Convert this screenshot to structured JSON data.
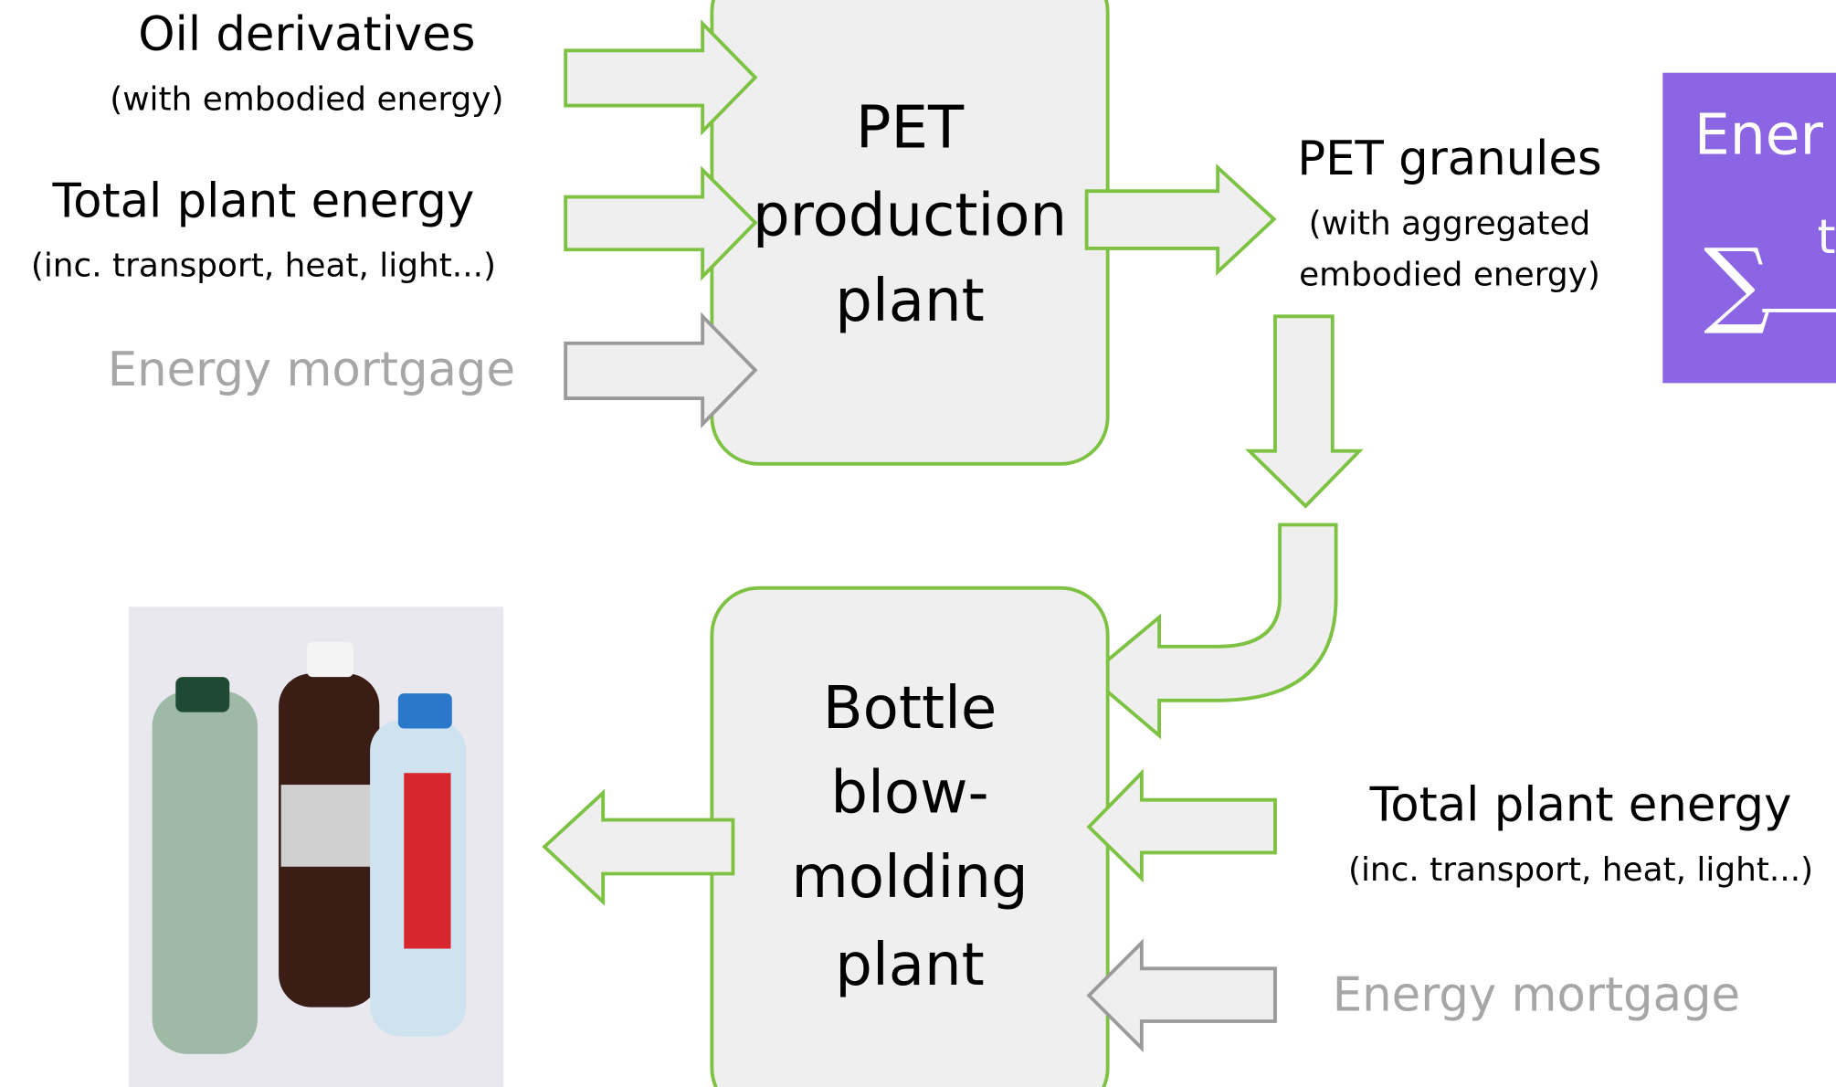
{
  "inputs_top": [
    {
      "label": "Oil derivatives",
      "note": "(with embodied energy)"
    },
    {
      "label": "Total plant energy",
      "note": "(inc. transport, heat, light...)"
    },
    {
      "label": "Energy mortgage"
    }
  ],
  "plant_top": {
    "lines": [
      "PET",
      "production",
      "plant"
    ]
  },
  "output_top": {
    "label": "PET granules",
    "note_lines": [
      "(with aggregated",
      "embodied energy)"
    ]
  },
  "plant_bottom": {
    "lines": [
      "Bottle",
      "blow-",
      "molding",
      "plant"
    ]
  },
  "inputs_bottom": [
    {
      "label": "Total plant energy",
      "note": "(inc. transport, heat, light...)"
    },
    {
      "label": "Energy mortgage"
    }
  ],
  "side_box": {
    "title": "Ener",
    "formula_symbol": "∑",
    "formula_numerator": "t"
  }
}
